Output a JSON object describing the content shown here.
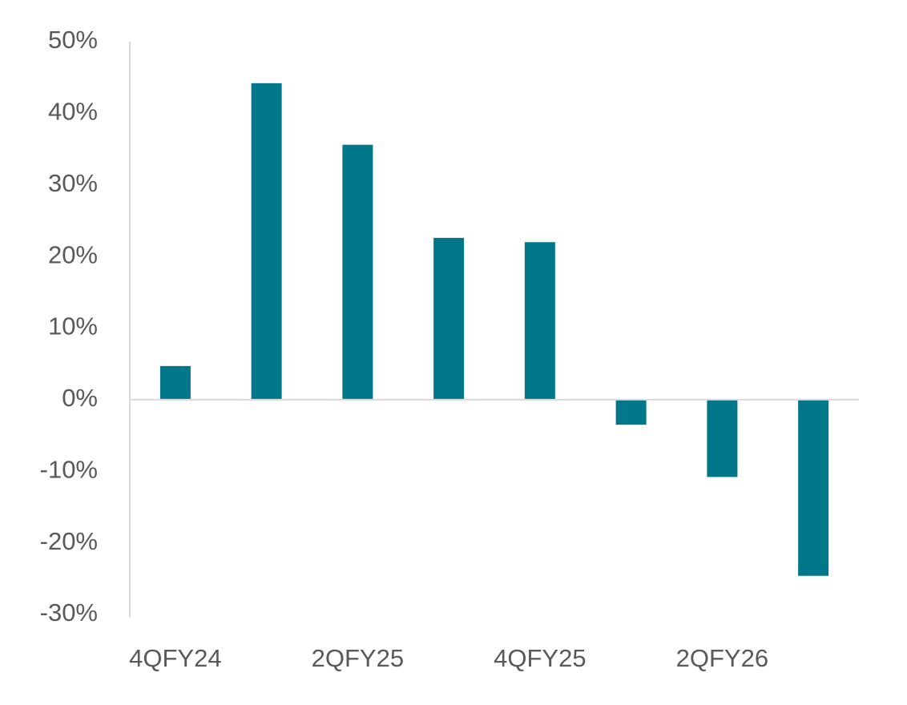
{
  "chart_data": {
    "type": "bar",
    "categories": [
      "4QFY24",
      null,
      "2QFY25",
      null,
      "4QFY25",
      null,
      "2QFY26",
      null
    ],
    "values": [
      4.7,
      44.2,
      35.6,
      22.6,
      22.0,
      -3.5,
      -10.8,
      -24.6
    ],
    "color": "#00788a",
    "ylim": [
      -30,
      50
    ],
    "yticks": [
      {
        "value": -30,
        "label": "-30%"
      },
      {
        "value": -20,
        "label": "-20%"
      },
      {
        "value": -10,
        "label": "-10%"
      },
      {
        "value": 0,
        "label": "0%"
      },
      {
        "value": 10,
        "label": "10%"
      },
      {
        "value": 20,
        "label": "20%"
      },
      {
        "value": 30,
        "label": "30%"
      },
      {
        "value": 40,
        "label": "40%"
      },
      {
        "value": 50,
        "label": "50%"
      }
    ],
    "grid": false
  }
}
